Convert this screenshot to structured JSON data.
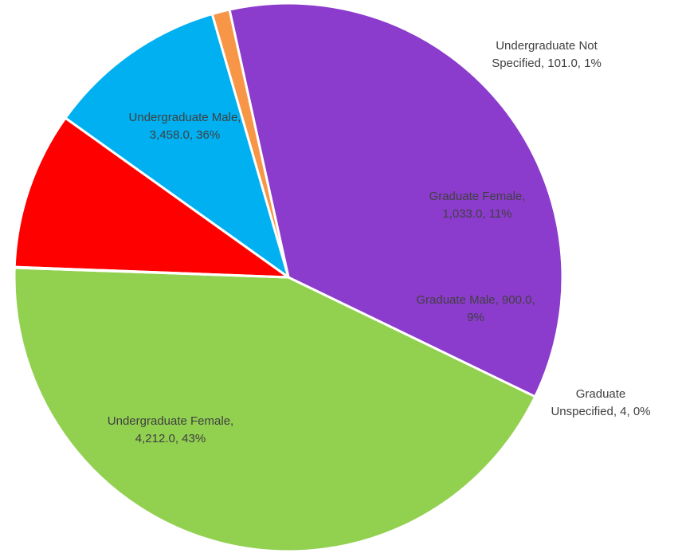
{
  "chart_data": {
    "type": "pie",
    "title": "",
    "slices": [
      {
        "name": "Undergraduate Female",
        "value": 4212.0,
        "percent_label": "43%",
        "color": "#92d050",
        "label_lines": [
          "Undergraduate Female,",
          "4,212.0, 43%"
        ]
      },
      {
        "name": "Undergraduate Male",
        "value": 3458.0,
        "percent_label": "36%",
        "color": "#8b3ccc",
        "label_lines": [
          "Undergraduate Male,",
          "3,458.0, 36%"
        ]
      },
      {
        "name": "Undergraduate Not Specified",
        "value": 101.0,
        "percent_label": "1%",
        "color": "#f79646",
        "label_lines": [
          "Undergraduate Not",
          "Specified, 101.0, 1%"
        ]
      },
      {
        "name": "Graduate Female",
        "value": 1033.0,
        "percent_label": "11%",
        "color": "#00b0f0",
        "label_lines": [
          "Graduate Female,",
          "1,033.0, 11%"
        ]
      },
      {
        "name": "Graduate Male",
        "value": 900.0,
        "percent_label": "9%",
        "color": "#ff0000",
        "label_lines": [
          "Graduate Male, 900.0,",
          "9%"
        ]
      },
      {
        "name": "Graduate Unspecified",
        "value": 4,
        "percent_label": "0%",
        "color": "#ffc000",
        "label_lines": [
          "Graduate",
          "Unspecified, 4, 0%"
        ]
      }
    ],
    "legend": "none"
  }
}
